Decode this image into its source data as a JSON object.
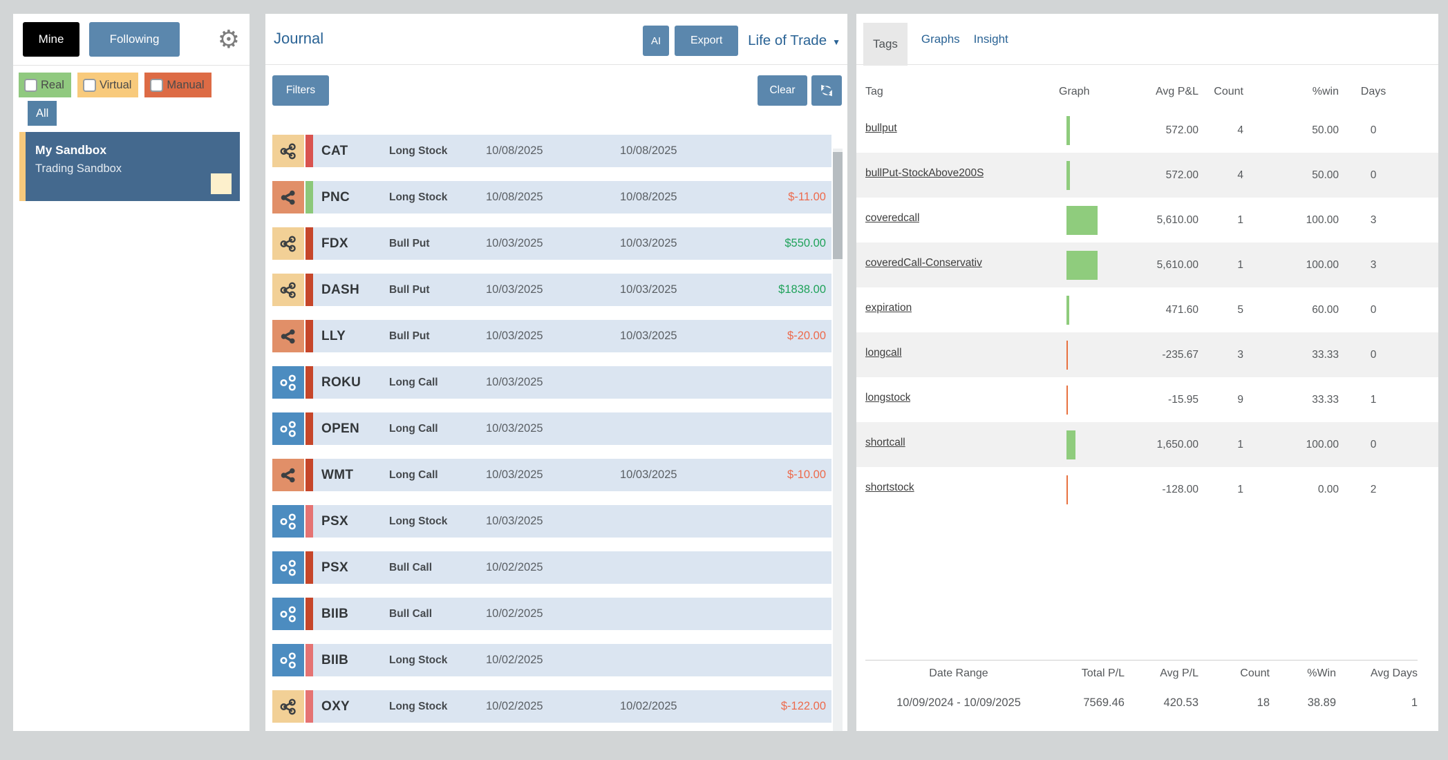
{
  "colors": {
    "accent_blue": "#5b87ad",
    "link_blue": "#2a6395",
    "win_green": "#1fa25a",
    "loss_orange": "#ed6a4c",
    "tag_bar_positive": "#8fcc7d",
    "tag_bar_negative": "#e8713f",
    "chip_real": "#90c97f",
    "chip_virtual": "#f8ca7c",
    "chip_manual": "#dd6b45",
    "trade_row_bg": "#dbe5f1",
    "sandbox_bg": "#44698e",
    "sandbox_border": "#f6c97d",
    "note_square": "#fdf0cc"
  },
  "icons": {
    "gear": "⚙",
    "caret": "▼",
    "share": "share-alt-nodes",
    "refresh": "circular-arrows",
    "checkbox": "empty-checkbox"
  },
  "sidebar": {
    "mine_label": "Mine",
    "following_label": "Following",
    "filter_real": "Real",
    "filter_virtual": "Virtual",
    "filter_manual": "Manual",
    "filter_all": "All",
    "sandbox_title": "My Sandbox",
    "sandbox_subtitle": "Trading Sandbox"
  },
  "journal": {
    "title": "Journal",
    "ai_label": "AI",
    "export_label": "Export",
    "view_selector": "Life of Trade",
    "filters_label": "Filters",
    "clear_label": "Clear",
    "trades": [
      {
        "symbol": "CAT",
        "type": "Long Stock",
        "open": "10/08/2025",
        "close": "10/08/2025",
        "pnl": "",
        "pnl_color": "",
        "icon": "tan",
        "bar": "red"
      },
      {
        "symbol": "PNC",
        "type": "Long Stock",
        "open": "10/08/2025",
        "close": "10/08/2025",
        "pnl": "$-11.00",
        "pnl_color": "loss",
        "icon": "salmon",
        "bar": "green"
      },
      {
        "symbol": "FDX",
        "type": "Bull Put",
        "open": "10/03/2025",
        "close": "10/03/2025",
        "pnl": "$550.00",
        "pnl_color": "win",
        "icon": "tan",
        "bar": "darkred"
      },
      {
        "symbol": "DASH",
        "type": "Bull Put",
        "open": "10/03/2025",
        "close": "10/03/2025",
        "pnl": "$1838.00",
        "pnl_color": "win",
        "icon": "tan",
        "bar": "darkred"
      },
      {
        "symbol": "LLY",
        "type": "Bull Put",
        "open": "10/03/2025",
        "close": "10/03/2025",
        "pnl": "$-20.00",
        "pnl_color": "loss",
        "icon": "salmon",
        "bar": "darkred"
      },
      {
        "symbol": "ROKU",
        "type": "Long Call",
        "open": "10/03/2025",
        "close": "",
        "pnl": "",
        "pnl_color": "",
        "icon": "blue",
        "bar": "darkred"
      },
      {
        "symbol": "OPEN",
        "type": "Long Call",
        "open": "10/03/2025",
        "close": "",
        "pnl": "",
        "pnl_color": "",
        "icon": "blue",
        "bar": "darkred"
      },
      {
        "symbol": "WMT",
        "type": "Long Call",
        "open": "10/03/2025",
        "close": "10/03/2025",
        "pnl": "$-10.00",
        "pnl_color": "loss",
        "icon": "salmon",
        "bar": "darkred"
      },
      {
        "symbol": "PSX",
        "type": "Long Stock",
        "open": "10/03/2025",
        "close": "",
        "pnl": "",
        "pnl_color": "",
        "icon": "blue",
        "bar": "lightred"
      },
      {
        "symbol": "PSX",
        "type": "Bull Call",
        "open": "10/02/2025",
        "close": "",
        "pnl": "",
        "pnl_color": "",
        "icon": "blue",
        "bar": "darkred"
      },
      {
        "symbol": "BIIB",
        "type": "Bull Call",
        "open": "10/02/2025",
        "close": "",
        "pnl": "",
        "pnl_color": "",
        "icon": "blue",
        "bar": "darkred"
      },
      {
        "symbol": "BIIB",
        "type": "Long Stock",
        "open": "10/02/2025",
        "close": "",
        "pnl": "",
        "pnl_color": "",
        "icon": "blue",
        "bar": "lightred"
      },
      {
        "symbol": "OXY",
        "type": "Long Stock",
        "open": "10/02/2025",
        "close": "10/02/2025",
        "pnl": "$-122.00",
        "pnl_color": "loss",
        "icon": "tan",
        "bar": "lightred"
      }
    ]
  },
  "tags_panel": {
    "tab_tags": "Tags",
    "tab_graphs": "Graphs",
    "tab_insight": "Insight",
    "columns": [
      "Tag",
      "Graph",
      "Avg P&L",
      "Count",
      "%win",
      "Days"
    ],
    "max_bar_value": 5610,
    "rows": [
      {
        "tag": "bullput",
        "avg_pl": "572.00",
        "avg_pl_value": 572,
        "count": "4",
        "pct_win": "50.00",
        "days": "0"
      },
      {
        "tag": "bullPut-StockAbove200S",
        "avg_pl": "572.00",
        "avg_pl_value": 572,
        "count": "4",
        "pct_win": "50.00",
        "days": "0"
      },
      {
        "tag": "coveredcall",
        "avg_pl": "5,610.00",
        "avg_pl_value": 5610,
        "count": "1",
        "pct_win": "100.00",
        "days": "3"
      },
      {
        "tag": "coveredCall-Conservativ",
        "avg_pl": "5,610.00",
        "avg_pl_value": 5610,
        "count": "1",
        "pct_win": "100.00",
        "days": "3"
      },
      {
        "tag": "expiration",
        "avg_pl": "471.60",
        "avg_pl_value": 471.6,
        "count": "5",
        "pct_win": "60.00",
        "days": "0"
      },
      {
        "tag": "longcall",
        "avg_pl": "-235.67",
        "avg_pl_value": -235.67,
        "count": "3",
        "pct_win": "33.33",
        "days": "0"
      },
      {
        "tag": "longstock",
        "avg_pl": "-15.95",
        "avg_pl_value": -15.95,
        "count": "9",
        "pct_win": "33.33",
        "days": "1"
      },
      {
        "tag": "shortcall",
        "avg_pl": "1,650.00",
        "avg_pl_value": 1650,
        "count": "1",
        "pct_win": "100.00",
        "days": "0"
      },
      {
        "tag": "shortstock",
        "avg_pl": "-128.00",
        "avg_pl_value": -128,
        "count": "1",
        "pct_win": "0.00",
        "days": "2"
      }
    ],
    "summary": {
      "columns": [
        "Date Range",
        "Total P/L",
        "Avg P/L",
        "Count",
        "%Win",
        "Avg Days"
      ],
      "values": [
        "10/09/2024 - 10/09/2025",
        "7569.46",
        "420.53",
        "18",
        "38.89",
        "1"
      ]
    }
  }
}
